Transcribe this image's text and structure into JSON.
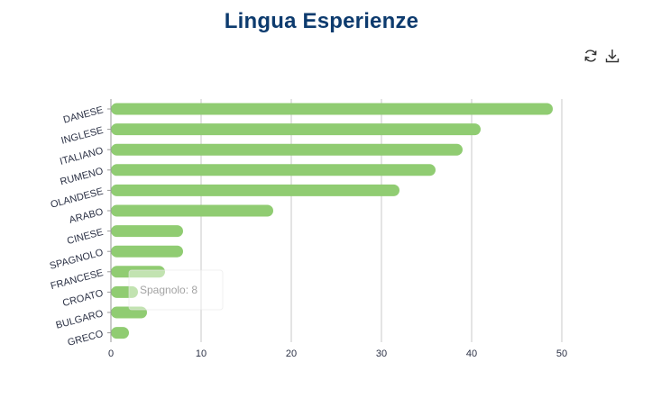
{
  "title": "Lingua Esperienze",
  "toolbar": {
    "refresh_icon": "refresh-icon",
    "download_icon": "download-icon"
  },
  "tooltip": {
    "text": "Spagnolo: 8"
  },
  "colors": {
    "bar": "#90cc72",
    "title": "#0d3b6e",
    "grid": "#c8c8c8"
  },
  "chart_data": {
    "type": "bar",
    "orientation": "horizontal",
    "title": "Lingua Esperienze",
    "categories": [
      "DANESE",
      "INGLESE",
      "ITALIANO",
      "RUMENO",
      "OLANDESE",
      "ARABO",
      "CINESE",
      "SPAGNOLO",
      "FRANCESE",
      "CROATO",
      "BULGARO",
      "GRECO"
    ],
    "values": [
      49,
      41,
      39,
      36,
      32,
      18,
      8,
      8,
      6,
      3,
      4,
      2
    ],
    "xlim": [
      0,
      50
    ],
    "xticks": [
      0,
      10,
      20,
      30,
      40,
      50
    ],
    "grid": "vertical",
    "xlabel": "",
    "ylabel": ""
  }
}
